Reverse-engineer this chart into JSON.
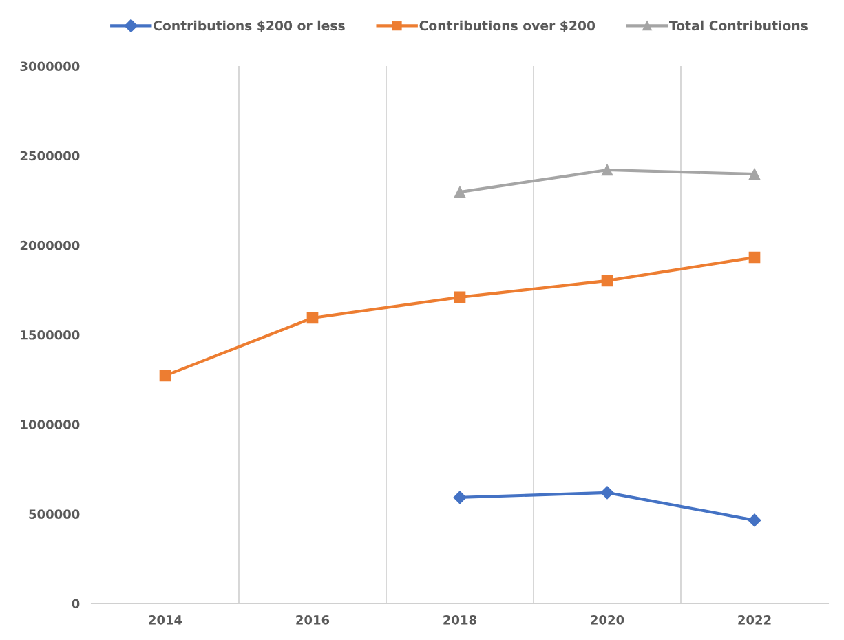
{
  "chart_data": {
    "type": "line",
    "categories": [
      "2014",
      "2016",
      "2018",
      "2020",
      "2022"
    ],
    "series": [
      {
        "name": "Contributions $200 or less",
        "color": "#4472c4",
        "marker": "diamond",
        "values": [
          null,
          null,
          592000,
          619000,
          465000
        ]
      },
      {
        "name": "Contributions over $200",
        "color": "#ed7d31",
        "marker": "square",
        "values": [
          1272000,
          1594000,
          1710000,
          1802000,
          1932000
        ]
      },
      {
        "name": "Total Contributions",
        "color": "#a5a5a5",
        "marker": "triangle",
        "values": [
          null,
          null,
          2297000,
          2420000,
          2397000
        ]
      }
    ],
    "ylim": [
      0,
      3000000
    ],
    "yticks": [
      0,
      500000,
      1000000,
      1500000,
      2000000,
      2500000,
      3000000
    ],
    "grid": "x",
    "legend": "top",
    "line_style": "solid"
  }
}
